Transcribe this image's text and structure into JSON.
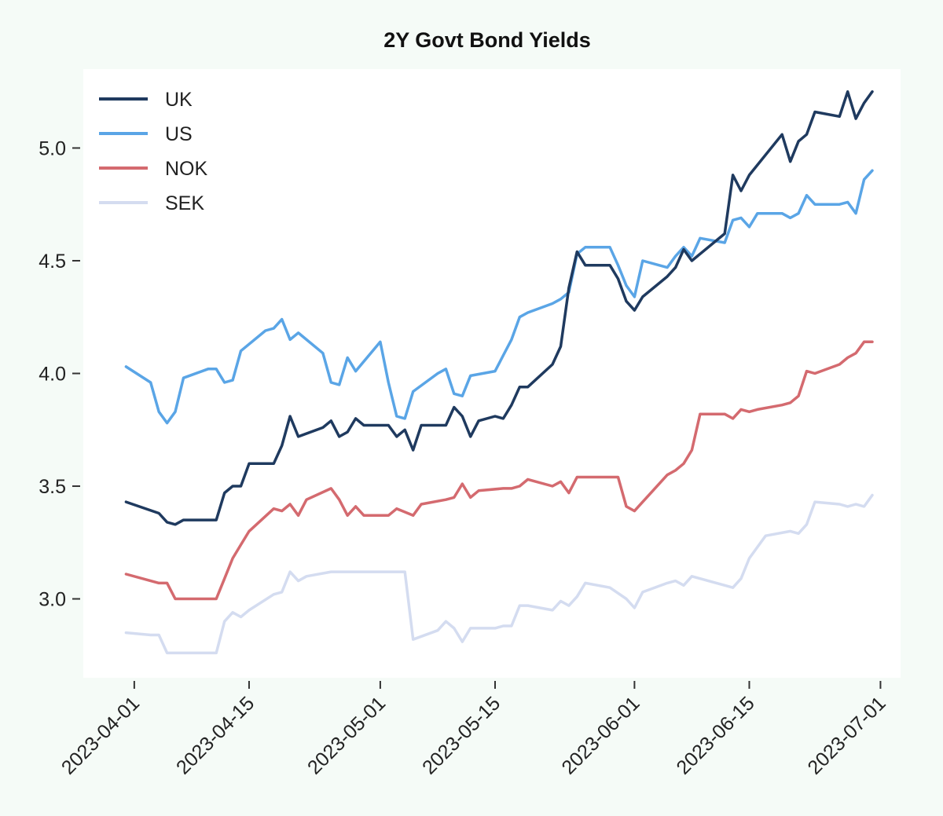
{
  "chart_data": {
    "type": "line",
    "title": "2Y Govt Bond Yields",
    "xlabel": "",
    "ylabel": "",
    "x_type": "date",
    "xlim": [
      "2023-03-30",
      "2023-06-30"
    ],
    "ylim": [
      2.65,
      5.35
    ],
    "x_ticks": [
      "2023-04-01",
      "2023-04-15",
      "2023-05-01",
      "2023-05-15",
      "2023-06-01",
      "2023-06-15",
      "2023-07-01"
    ],
    "y_ticks": [
      3.0,
      3.5,
      4.0,
      4.5,
      5.0
    ],
    "y_tick_labels": [
      "3.0",
      "3.5",
      "4.0",
      "4.5",
      "5.0"
    ],
    "grid": false,
    "legend_position": "top-left",
    "series": [
      {
        "name": "UK",
        "color": "#1f3a5f",
        "points": [
          [
            "2023-03-31",
            3.43
          ],
          [
            "2023-04-04",
            3.38
          ],
          [
            "2023-04-05",
            3.34
          ],
          [
            "2023-04-06",
            3.33
          ],
          [
            "2023-04-07",
            3.35
          ],
          [
            "2023-04-11",
            3.35
          ],
          [
            "2023-04-12",
            3.47
          ],
          [
            "2023-04-13",
            3.5
          ],
          [
            "2023-04-14",
            3.5
          ],
          [
            "2023-04-15",
            3.6
          ],
          [
            "2023-04-18",
            3.6
          ],
          [
            "2023-04-19",
            3.68
          ],
          [
            "2023-04-20",
            3.81
          ],
          [
            "2023-04-21",
            3.72
          ],
          [
            "2023-04-24",
            3.76
          ],
          [
            "2023-04-25",
            3.79
          ],
          [
            "2023-04-26",
            3.72
          ],
          [
            "2023-04-27",
            3.74
          ],
          [
            "2023-04-28",
            3.8
          ],
          [
            "2023-04-29",
            3.77
          ],
          [
            "2023-05-02",
            3.77
          ],
          [
            "2023-05-03",
            3.72
          ],
          [
            "2023-05-04",
            3.75
          ],
          [
            "2023-05-05",
            3.66
          ],
          [
            "2023-05-06",
            3.77
          ],
          [
            "2023-05-09",
            3.77
          ],
          [
            "2023-05-10",
            3.85
          ],
          [
            "2023-05-11",
            3.81
          ],
          [
            "2023-05-12",
            3.72
          ],
          [
            "2023-05-13",
            3.79
          ],
          [
            "2023-05-15",
            3.81
          ],
          [
            "2023-05-16",
            3.8
          ],
          [
            "2023-05-17",
            3.86
          ],
          [
            "2023-05-18",
            3.94
          ],
          [
            "2023-05-19",
            3.94
          ],
          [
            "2023-05-22",
            4.04
          ],
          [
            "2023-05-23",
            4.12
          ],
          [
            "2023-05-24",
            4.38
          ],
          [
            "2023-05-25",
            4.54
          ],
          [
            "2023-05-26",
            4.48
          ],
          [
            "2023-05-29",
            4.48
          ],
          [
            "2023-05-30",
            4.42
          ],
          [
            "2023-05-31",
            4.32
          ],
          [
            "2023-06-01",
            4.28
          ],
          [
            "2023-06-02",
            4.34
          ],
          [
            "2023-06-05",
            4.43
          ],
          [
            "2023-06-06",
            4.47
          ],
          [
            "2023-06-07",
            4.55
          ],
          [
            "2023-06-08",
            4.5
          ],
          [
            "2023-06-12",
            4.62
          ],
          [
            "2023-06-13",
            4.88
          ],
          [
            "2023-06-14",
            4.81
          ],
          [
            "2023-06-15",
            4.88
          ],
          [
            "2023-06-19",
            5.06
          ],
          [
            "2023-06-20",
            4.94
          ],
          [
            "2023-06-21",
            5.03
          ],
          [
            "2023-06-22",
            5.06
          ],
          [
            "2023-06-23",
            5.16
          ],
          [
            "2023-06-26",
            5.14
          ],
          [
            "2023-06-27",
            5.25
          ],
          [
            "2023-06-28",
            5.13
          ],
          [
            "2023-06-29",
            5.2
          ],
          [
            "2023-06-30",
            5.25
          ]
        ]
      },
      {
        "name": "US",
        "color": "#5aa5e6",
        "points": [
          [
            "2023-03-31",
            4.03
          ],
          [
            "2023-04-03",
            3.96
          ],
          [
            "2023-04-04",
            3.83
          ],
          [
            "2023-04-05",
            3.78
          ],
          [
            "2023-04-06",
            3.83
          ],
          [
            "2023-04-07",
            3.98
          ],
          [
            "2023-04-10",
            4.02
          ],
          [
            "2023-04-11",
            4.02
          ],
          [
            "2023-04-12",
            3.96
          ],
          [
            "2023-04-13",
            3.97
          ],
          [
            "2023-04-14",
            4.1
          ],
          [
            "2023-04-17",
            4.19
          ],
          [
            "2023-04-18",
            4.2
          ],
          [
            "2023-04-19",
            4.24
          ],
          [
            "2023-04-20",
            4.15
          ],
          [
            "2023-04-21",
            4.18
          ],
          [
            "2023-04-24",
            4.09
          ],
          [
            "2023-04-25",
            3.96
          ],
          [
            "2023-04-26",
            3.95
          ],
          [
            "2023-04-27",
            4.07
          ],
          [
            "2023-04-28",
            4.01
          ],
          [
            "2023-05-01",
            4.14
          ],
          [
            "2023-05-02",
            3.96
          ],
          [
            "2023-05-03",
            3.81
          ],
          [
            "2023-05-04",
            3.8
          ],
          [
            "2023-05-05",
            3.92
          ],
          [
            "2023-05-08",
            4.0
          ],
          [
            "2023-05-09",
            4.02
          ],
          [
            "2023-05-10",
            3.91
          ],
          [
            "2023-05-11",
            3.9
          ],
          [
            "2023-05-12",
            3.99
          ],
          [
            "2023-05-15",
            4.01
          ],
          [
            "2023-05-16",
            4.08
          ],
          [
            "2023-05-17",
            4.15
          ],
          [
            "2023-05-18",
            4.25
          ],
          [
            "2023-05-19",
            4.27
          ],
          [
            "2023-05-22",
            4.31
          ],
          [
            "2023-05-23",
            4.33
          ],
          [
            "2023-05-24",
            4.36
          ],
          [
            "2023-05-25",
            4.53
          ],
          [
            "2023-05-26",
            4.56
          ],
          [
            "2023-05-29",
            4.56
          ],
          [
            "2023-05-30",
            4.48
          ],
          [
            "2023-05-31",
            4.39
          ],
          [
            "2023-06-01",
            4.34
          ],
          [
            "2023-06-02",
            4.5
          ],
          [
            "2023-06-05",
            4.47
          ],
          [
            "2023-06-06",
            4.52
          ],
          [
            "2023-06-07",
            4.56
          ],
          [
            "2023-06-08",
            4.52
          ],
          [
            "2023-06-09",
            4.6
          ],
          [
            "2023-06-12",
            4.58
          ],
          [
            "2023-06-13",
            4.68
          ],
          [
            "2023-06-14",
            4.69
          ],
          [
            "2023-06-15",
            4.65
          ],
          [
            "2023-06-16",
            4.71
          ],
          [
            "2023-06-19",
            4.71
          ],
          [
            "2023-06-20",
            4.69
          ],
          [
            "2023-06-21",
            4.71
          ],
          [
            "2023-06-22",
            4.79
          ],
          [
            "2023-06-23",
            4.75
          ],
          [
            "2023-06-26",
            4.75
          ],
          [
            "2023-06-27",
            4.76
          ],
          [
            "2023-06-28",
            4.71
          ],
          [
            "2023-06-29",
            4.86
          ],
          [
            "2023-06-30",
            4.9
          ]
        ]
      },
      {
        "name": "NOK",
        "color": "#d46a6f",
        "points": [
          [
            "2023-03-31",
            3.11
          ],
          [
            "2023-04-03",
            3.08
          ],
          [
            "2023-04-04",
            3.07
          ],
          [
            "2023-04-05",
            3.07
          ],
          [
            "2023-04-06",
            3.0
          ],
          [
            "2023-04-07",
            3.0
          ],
          [
            "2023-04-11",
            3.0
          ],
          [
            "2023-04-12",
            3.09
          ],
          [
            "2023-04-13",
            3.18
          ],
          [
            "2023-04-14",
            3.24
          ],
          [
            "2023-04-15",
            3.3
          ],
          [
            "2023-04-18",
            3.4
          ],
          [
            "2023-04-19",
            3.39
          ],
          [
            "2023-04-20",
            3.42
          ],
          [
            "2023-04-21",
            3.37
          ],
          [
            "2023-04-22",
            3.44
          ],
          [
            "2023-04-25",
            3.49
          ],
          [
            "2023-04-26",
            3.44
          ],
          [
            "2023-04-27",
            3.37
          ],
          [
            "2023-04-28",
            3.41
          ],
          [
            "2023-04-29",
            3.37
          ],
          [
            "2023-05-02",
            3.37
          ],
          [
            "2023-05-03",
            3.4
          ],
          [
            "2023-05-05",
            3.37
          ],
          [
            "2023-05-06",
            3.42
          ],
          [
            "2023-05-09",
            3.44
          ],
          [
            "2023-05-10",
            3.45
          ],
          [
            "2023-05-11",
            3.51
          ],
          [
            "2023-05-12",
            3.45
          ],
          [
            "2023-05-13",
            3.48
          ],
          [
            "2023-05-16",
            3.49
          ],
          [
            "2023-05-17",
            3.49
          ],
          [
            "2023-05-18",
            3.5
          ],
          [
            "2023-05-19",
            3.53
          ],
          [
            "2023-05-22",
            3.5
          ],
          [
            "2023-05-23",
            3.52
          ],
          [
            "2023-05-24",
            3.47
          ],
          [
            "2023-05-25",
            3.54
          ],
          [
            "2023-05-26",
            3.54
          ],
          [
            "2023-05-30",
            3.54
          ],
          [
            "2023-05-31",
            3.41
          ],
          [
            "2023-06-01",
            3.39
          ],
          [
            "2023-06-02",
            3.43
          ],
          [
            "2023-06-05",
            3.55
          ],
          [
            "2023-06-06",
            3.57
          ],
          [
            "2023-06-07",
            3.6
          ],
          [
            "2023-06-08",
            3.66
          ],
          [
            "2023-06-09",
            3.82
          ],
          [
            "2023-06-12",
            3.82
          ],
          [
            "2023-06-13",
            3.8
          ],
          [
            "2023-06-14",
            3.84
          ],
          [
            "2023-06-15",
            3.83
          ],
          [
            "2023-06-16",
            3.84
          ],
          [
            "2023-06-19",
            3.86
          ],
          [
            "2023-06-20",
            3.87
          ],
          [
            "2023-06-21",
            3.9
          ],
          [
            "2023-06-22",
            4.01
          ],
          [
            "2023-06-23",
            4.0
          ],
          [
            "2023-06-26",
            4.04
          ],
          [
            "2023-06-27",
            4.07
          ],
          [
            "2023-06-28",
            4.09
          ],
          [
            "2023-06-29",
            4.14
          ],
          [
            "2023-06-30",
            4.14
          ]
        ]
      },
      {
        "name": "SEK",
        "color": "#d4dcf0",
        "points": [
          [
            "2023-03-31",
            2.85
          ],
          [
            "2023-04-03",
            2.84
          ],
          [
            "2023-04-04",
            2.84
          ],
          [
            "2023-04-05",
            2.76
          ],
          [
            "2023-04-06",
            2.76
          ],
          [
            "2023-04-11",
            2.76
          ],
          [
            "2023-04-12",
            2.9
          ],
          [
            "2023-04-13",
            2.94
          ],
          [
            "2023-04-14",
            2.92
          ],
          [
            "2023-04-15",
            2.95
          ],
          [
            "2023-04-18",
            3.02
          ],
          [
            "2023-04-19",
            3.03
          ],
          [
            "2023-04-20",
            3.12
          ],
          [
            "2023-04-21",
            3.08
          ],
          [
            "2023-04-22",
            3.1
          ],
          [
            "2023-04-25",
            3.12
          ],
          [
            "2023-04-29",
            3.12
          ],
          [
            "2023-05-04",
            3.12
          ],
          [
            "2023-05-05",
            2.82
          ],
          [
            "2023-05-08",
            2.86
          ],
          [
            "2023-05-09",
            2.9
          ],
          [
            "2023-05-10",
            2.87
          ],
          [
            "2023-05-11",
            2.81
          ],
          [
            "2023-05-12",
            2.87
          ],
          [
            "2023-05-15",
            2.87
          ],
          [
            "2023-05-16",
            2.88
          ],
          [
            "2023-05-17",
            2.88
          ],
          [
            "2023-05-18",
            2.97
          ],
          [
            "2023-05-19",
            2.97
          ],
          [
            "2023-05-22",
            2.95
          ],
          [
            "2023-05-23",
            2.99
          ],
          [
            "2023-05-24",
            2.97
          ],
          [
            "2023-05-25",
            3.01
          ],
          [
            "2023-05-26",
            3.07
          ],
          [
            "2023-05-29",
            3.05
          ],
          [
            "2023-05-31",
            3.0
          ],
          [
            "2023-06-01",
            2.96
          ],
          [
            "2023-06-02",
            3.03
          ],
          [
            "2023-06-05",
            3.07
          ],
          [
            "2023-06-06",
            3.08
          ],
          [
            "2023-06-07",
            3.06
          ],
          [
            "2023-06-08",
            3.1
          ],
          [
            "2023-06-09",
            3.09
          ],
          [
            "2023-06-12",
            3.06
          ],
          [
            "2023-06-13",
            3.05
          ],
          [
            "2023-06-14",
            3.09
          ],
          [
            "2023-06-15",
            3.18
          ],
          [
            "2023-06-16",
            3.23
          ],
          [
            "2023-06-17",
            3.28
          ],
          [
            "2023-06-20",
            3.3
          ],
          [
            "2023-06-21",
            3.29
          ],
          [
            "2023-06-22",
            3.33
          ],
          [
            "2023-06-23",
            3.43
          ],
          [
            "2023-06-26",
            3.42
          ],
          [
            "2023-06-27",
            3.41
          ],
          [
            "2023-06-28",
            3.42
          ],
          [
            "2023-06-29",
            3.41
          ],
          [
            "2023-06-30",
            3.46
          ]
        ]
      }
    ]
  }
}
